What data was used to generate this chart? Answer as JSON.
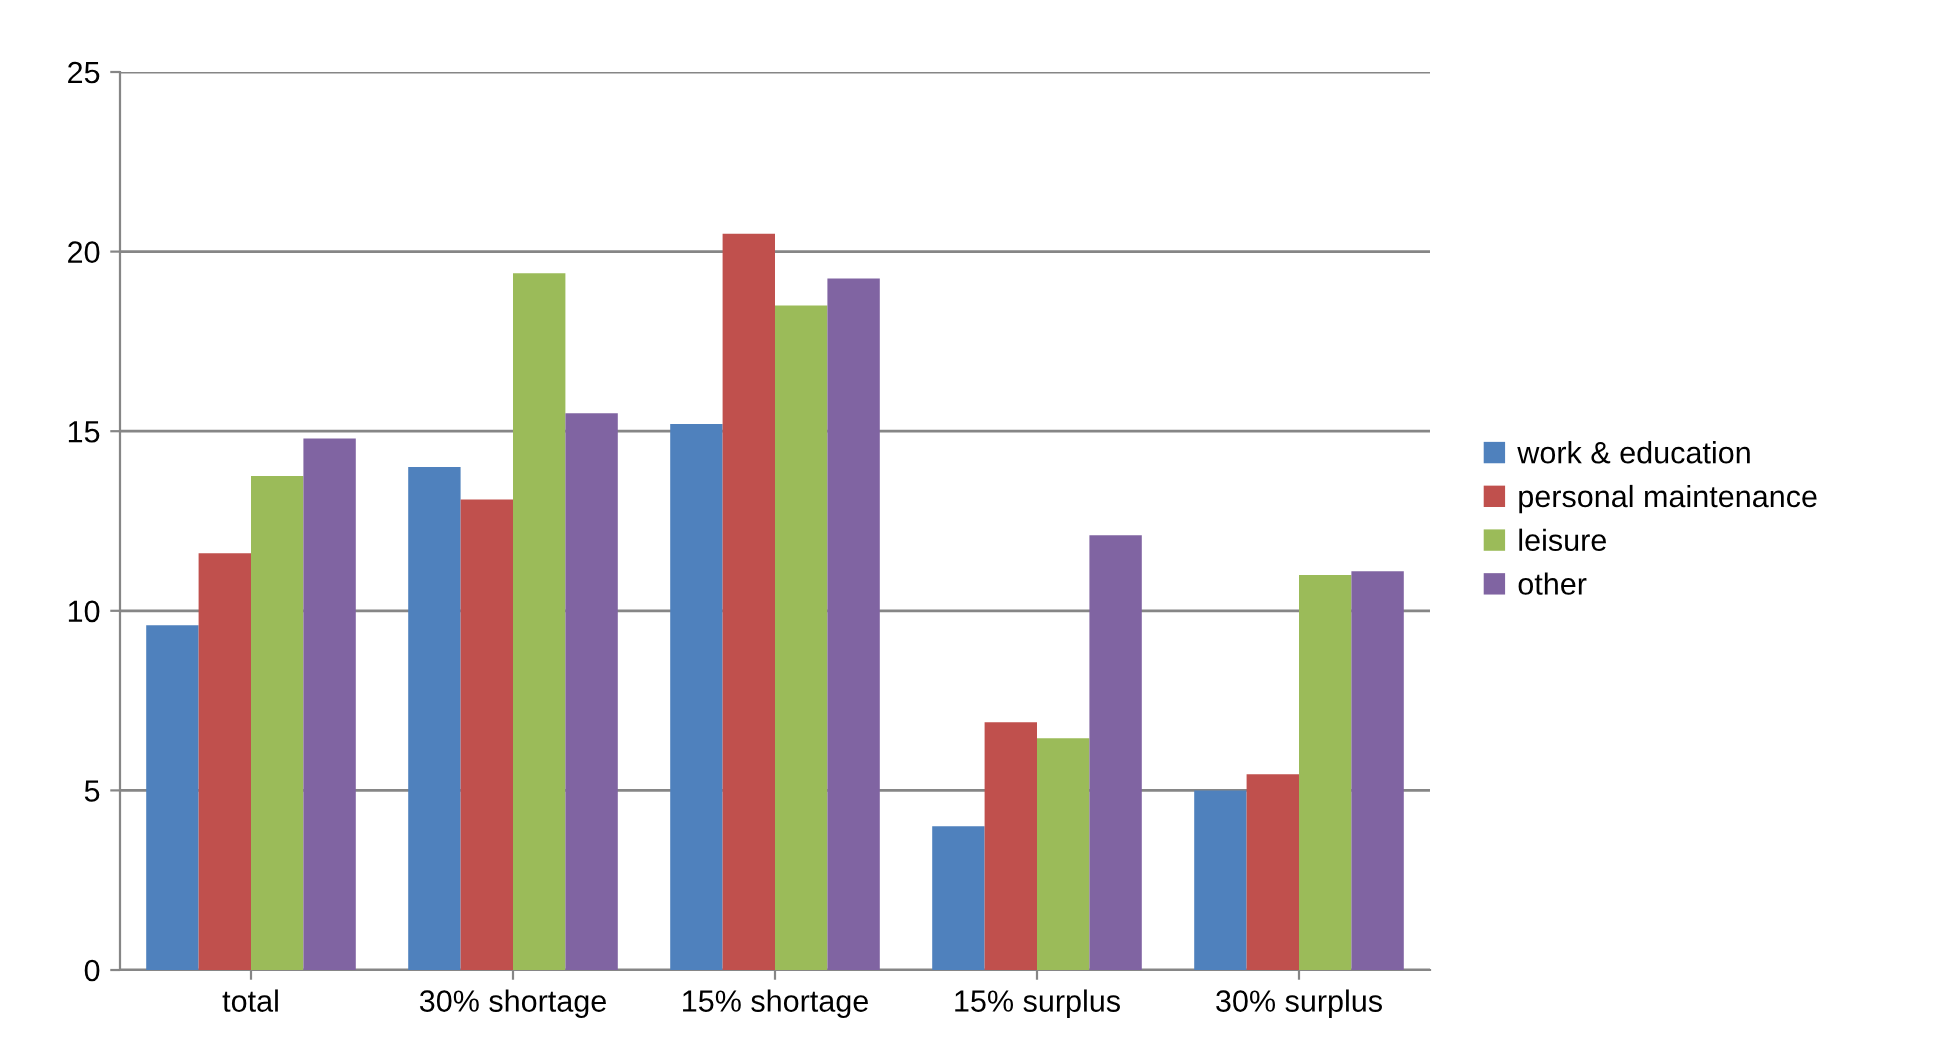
{
  "chart_data": {
    "type": "bar",
    "categories": [
      "total",
      "30% shortage",
      "15% shortage",
      "15% surplus",
      "30% surplus"
    ],
    "series": [
      {
        "name": "work & education",
        "color": "#4f81bd",
        "values": [
          9.6,
          14.0,
          15.2,
          4.0,
          5.0
        ]
      },
      {
        "name": "personal maintenance",
        "color": "#c0504d",
        "values": [
          11.6,
          13.1,
          20.5,
          6.9,
          5.45
        ]
      },
      {
        "name": "leisure",
        "color": "#9bbb59",
        "values": [
          13.75,
          19.4,
          18.5,
          6.45,
          11.0
        ]
      },
      {
        "name": "other",
        "color": "#8064a2",
        "values": [
          14.8,
          15.5,
          19.25,
          12.1,
          11.1
        ]
      }
    ],
    "ylim": [
      0,
      25
    ],
    "yticks": [
      0,
      5,
      10,
      15,
      20,
      25
    ],
    "grid": "y",
    "legend": "right"
  }
}
